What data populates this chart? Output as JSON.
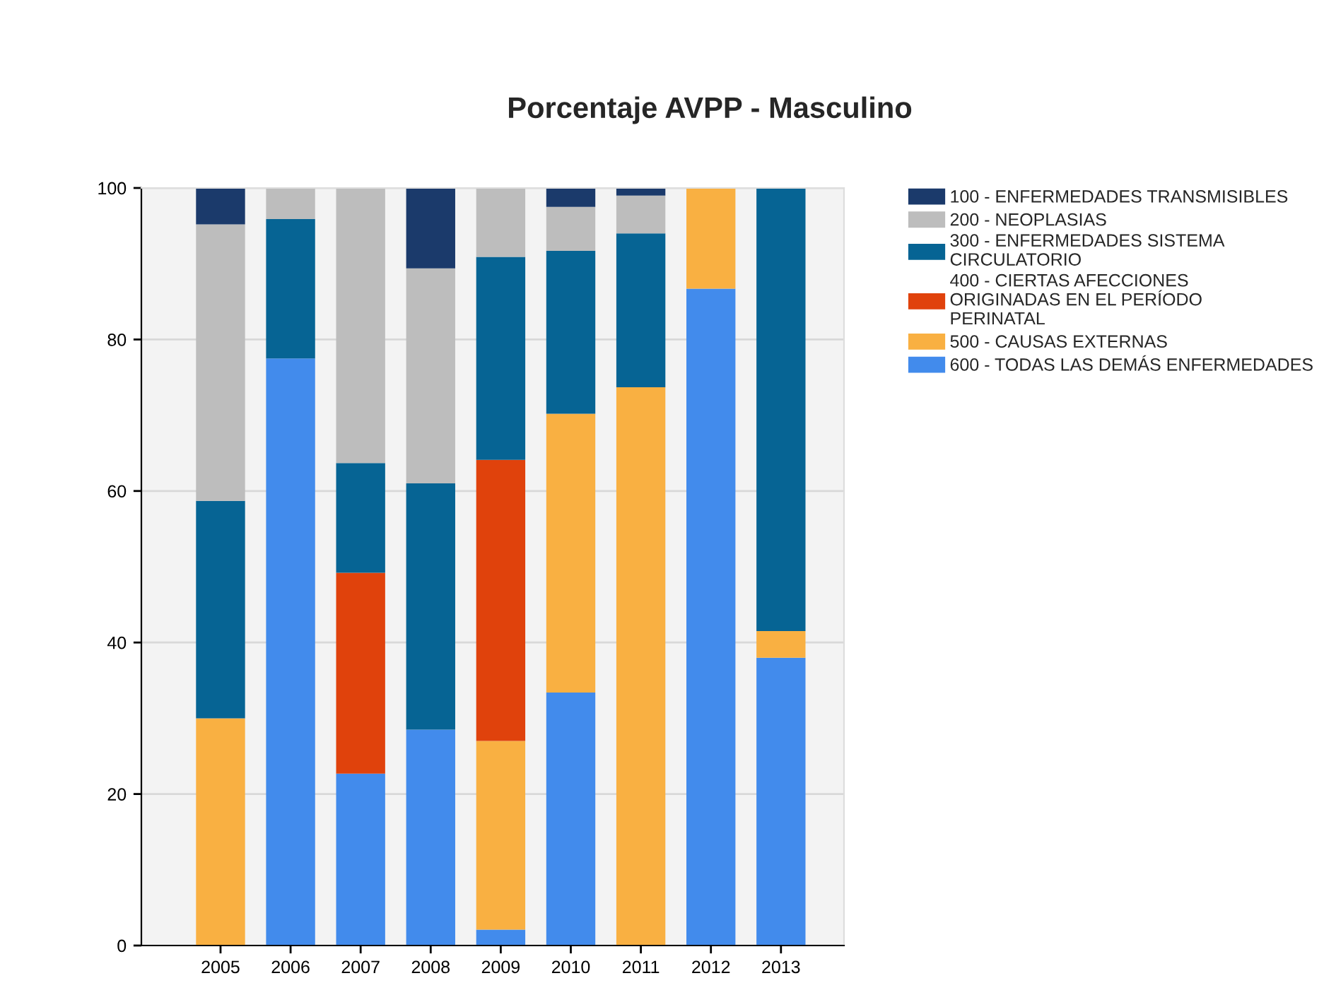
{
  "chart_data": {
    "type": "bar",
    "title": "Porcentaje AVPP - Masculino",
    "stacked": true,
    "categories": [
      "2005",
      "2006",
      "2007",
      "2008",
      "2009",
      "2010",
      "2011",
      "2012",
      "2013"
    ],
    "series": [
      {
        "name": "600 - TODAS LAS DEMÁS ENFERMEDADES",
        "color": "#428bec",
        "values": [
          null,
          77.5,
          22.7,
          28.5,
          2.1,
          33.4,
          null,
          86.7,
          38
        ]
      },
      {
        "name": "500 - CAUSAS EXTERNAS",
        "color": "#f9b042",
        "values": [
          30,
          null,
          null,
          null,
          24.9,
          36.8,
          73.7,
          13.3,
          3.5
        ]
      },
      {
        "name": "400 - CIERTAS AFECCIONES\nORIGINADAS EN EL PERÍODO\nPERINATAL",
        "color": "#e0420c",
        "values": [
          null,
          null,
          26.5,
          null,
          37.1,
          null,
          null,
          null,
          null
        ]
      },
      {
        "name": "300 - ENFERMEDADES SISTEMA\nCIRCULATORIO",
        "color": "#066494",
        "values": [
          28.7,
          18.4,
          14.5,
          32.5,
          26.8,
          21.5,
          20.3,
          null,
          58.5
        ]
      },
      {
        "name": "200 - NEOPLASIAS",
        "color": "#bdbdbd",
        "values": [
          36.5,
          4.1,
          36.3,
          28.4,
          9.1,
          5.8,
          5,
          null,
          null
        ]
      },
      {
        "name": "100 - ENFERMEDADES TRANSMISIBLES",
        "color": "#1b3a6b",
        "values": [
          4.8,
          null,
          null,
          10.6,
          null,
          2.5,
          1,
          null,
          null
        ]
      }
    ],
    "ylim": [
      0,
      100
    ],
    "yticks": [
      0,
      20,
      40,
      60,
      80,
      100
    ],
    "grid": "y",
    "legend": "top right"
  }
}
